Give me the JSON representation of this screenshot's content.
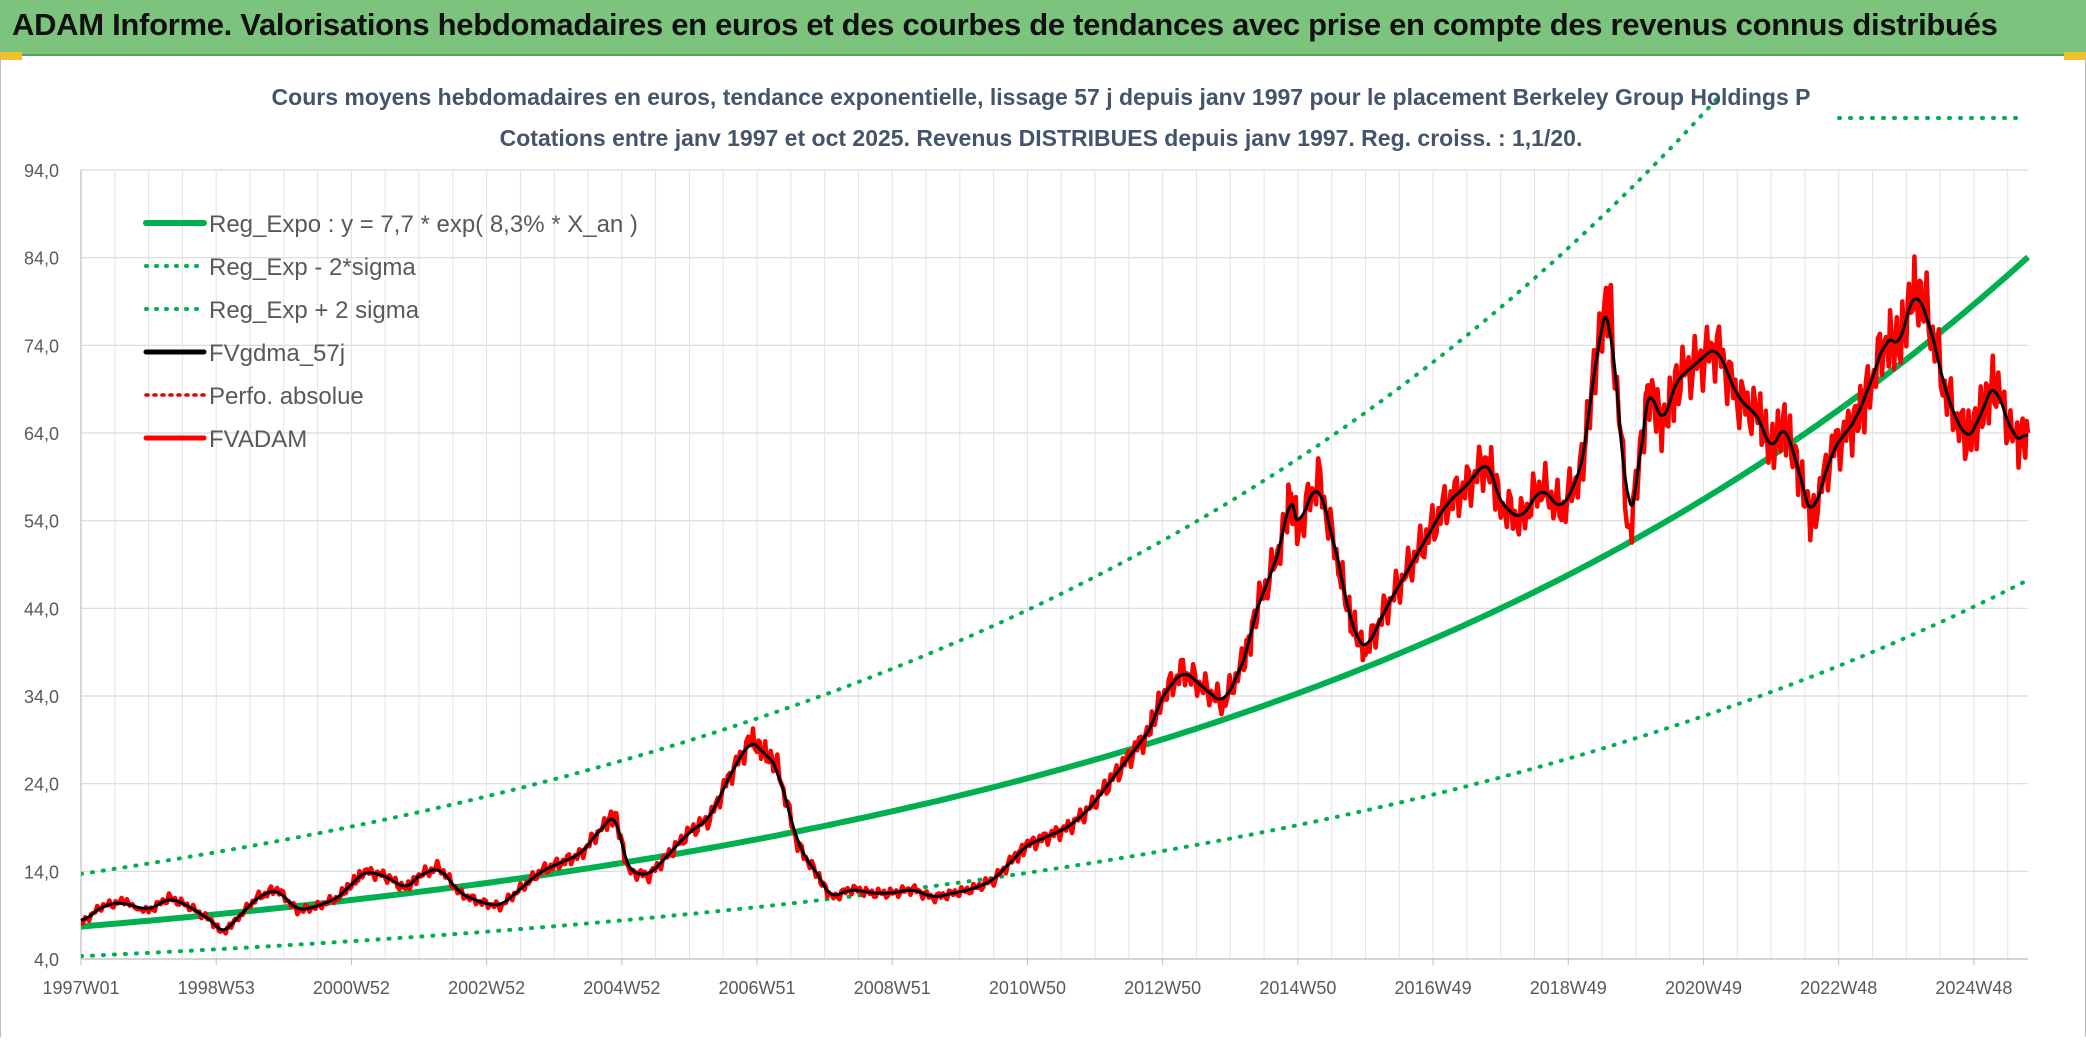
{
  "header": {
    "title": "ADAM Informe. Valorisations hebdomadaires en euros et des courbes de tendances avec prise en compte des revenus connus distribués"
  },
  "chart_data": {
    "type": "line",
    "title": "Cours moyens hebdomadaires en euros, tendance exponentielle, lissage 57 j depuis janv 1997 pour le placement Berkeley Group Holdings P",
    "subtitle": "Cotations entre janv 1997 et oct 2025. Revenus DISTRIBUES depuis janv 1997. Reg. croiss. : 1,1/20.",
    "xlabel": "",
    "ylabel": "",
    "xlim": [
      1997.0,
      2025.8
    ],
    "ylim": [
      4.0,
      94.0
    ],
    "grid": true,
    "legend_position": "top-left",
    "x_tick_positions": [
      1997.0,
      1999.0,
      2001.0,
      2003.0,
      2005.0,
      2007.0,
      2009.0,
      2011.0,
      2013.0,
      2015.0,
      2017.0,
      2019.0,
      2021.0,
      2023.0,
      2025.0
    ],
    "x_tick_labels": [
      "1997W01",
      "1998W53",
      "2000W52",
      "2002W52",
      "2004W52",
      "2006W51",
      "2008W51",
      "2010W50",
      "2012W50",
      "2014W50",
      "2016W49",
      "2018W49",
      "2020W49",
      "2022W48",
      "2024W48"
    ],
    "y_ticks": [
      4.0,
      14.0,
      24.0,
      34.0,
      44.0,
      54.0,
      64.0,
      74.0,
      84.0,
      94.0
    ],
    "y_tick_labels": [
      "4,0",
      "14,0",
      "24,0",
      "34,0",
      "44,0",
      "54,0",
      "64,0",
      "74,0",
      "84,0",
      "94,0"
    ],
    "regression": {
      "a": 7.7,
      "rate": 0.083,
      "sigma_factor": 1.78,
      "start_year": 1997.0,
      "end_year": 2025.8
    },
    "series": [
      {
        "name": "Reg_Expo : y = 7,7 * exp( 8,3% *  X_an )",
        "color": "#00b050",
        "style": "solid",
        "generated_from": "regression"
      },
      {
        "name": "Reg_Exp - 2*sigma",
        "color": "#00b050",
        "style": "dotted",
        "generated_from": "regression/sigma"
      },
      {
        "name": "Reg_Exp + 2 sigma",
        "color": "#00b050",
        "style": "dotted",
        "generated_from": "regression*sigma"
      },
      {
        "name": "FVgdma_57j",
        "color": "#000000",
        "style": "solid",
        "generated_from": "smoothed FVADAM"
      },
      {
        "name": "Perfo. absolue",
        "color": "#e00000",
        "style": "dotted",
        "generated_from": "none visible"
      },
      {
        "name": "FVADAM",
        "color": "#ff0000",
        "style": "solid",
        "x": [
          1997.0,
          1997.3,
          1997.6,
          1998.0,
          1998.3,
          1998.6,
          1998.9,
          1999.1,
          1999.3,
          1999.6,
          1999.9,
          2000.2,
          2000.5,
          2000.8,
          2001.0,
          2001.2,
          2001.5,
          2001.8,
          2002.0,
          2002.3,
          2002.6,
          2002.9,
          2003.2,
          2003.5,
          2003.8,
          2004.1,
          2004.4,
          2004.7,
          2004.9,
          2005.1,
          2005.4,
          2005.7,
          2006.0,
          2006.3,
          2006.6,
          2006.9,
          2007.1,
          2007.3,
          2007.6,
          2007.9,
          2008.1,
          2008.4,
          2008.7,
          2009.0,
          2009.3,
          2009.6,
          2009.9,
          2010.2,
          2010.5,
          2010.8,
          2011.0,
          2011.3,
          2011.6,
          2011.9,
          2012.2,
          2012.5,
          2012.8,
          2013.0,
          2013.3,
          2013.6,
          2013.9,
          2014.2,
          2014.4,
          2014.7,
          2014.9,
          2015.0,
          2015.3,
          2015.6,
          2015.8,
          2016.0,
          2016.3,
          2016.6,
          2016.9,
          2017.2,
          2017.5,
          2017.8,
          2018.0,
          2018.3,
          2018.6,
          2018.9,
          2019.2,
          2019.4,
          2019.6,
          2019.9,
          2020.1,
          2020.2,
          2020.4,
          2020.6,
          2020.9,
          2021.2,
          2021.5,
          2021.8,
          2022.0,
          2022.2,
          2022.4,
          2022.6,
          2022.9,
          2023.2,
          2023.4,
          2023.7,
          2023.9,
          2024.1,
          2024.3,
          2024.6,
          2024.9,
          2025.1,
          2025.3,
          2025.6,
          2025.8
        ],
        "values": [
          8.0,
          10.0,
          10.5,
          9.5,
          11.0,
          10.0,
          8.5,
          7.0,
          8.5,
          11.0,
          12.0,
          9.5,
          10.0,
          11.0,
          12.5,
          14.0,
          13.5,
          12.0,
          13.5,
          14.5,
          11.5,
          10.5,
          10.0,
          12.0,
          14.0,
          15.0,
          16.0,
          19.0,
          20.5,
          14.0,
          13.5,
          16.0,
          18.5,
          20.0,
          25.0,
          29.0,
          27.5,
          26.0,
          17.0,
          13.5,
          11.0,
          12.0,
          11.5,
          11.5,
          12.0,
          11.0,
          11.5,
          12.0,
          13.0,
          15.5,
          17.0,
          18.0,
          19.0,
          21.0,
          24.0,
          27.0,
          30.0,
          34.0,
          37.0,
          35.0,
          33.0,
          38.0,
          44.0,
          50.0,
          57.0,
          53.0,
          59.0,
          49.0,
          42.0,
          39.0,
          44.0,
          48.0,
          52.0,
          56.0,
          58.0,
          61.0,
          56.0,
          54.0,
          58.0,
          55.0,
          60.0,
          72.0,
          80.0,
          52.0,
          64.0,
          69.0,
          65.0,
          70.0,
          72.0,
          74.0,
          68.0,
          66.0,
          62.0,
          65.0,
          60.0,
          54.0,
          62.0,
          65.0,
          68.0,
          75.0,
          74.0,
          80.0,
          78.0,
          68.0,
          63.0,
          66.0,
          70.0,
          63.0,
          64.0
        ]
      }
    ]
  }
}
